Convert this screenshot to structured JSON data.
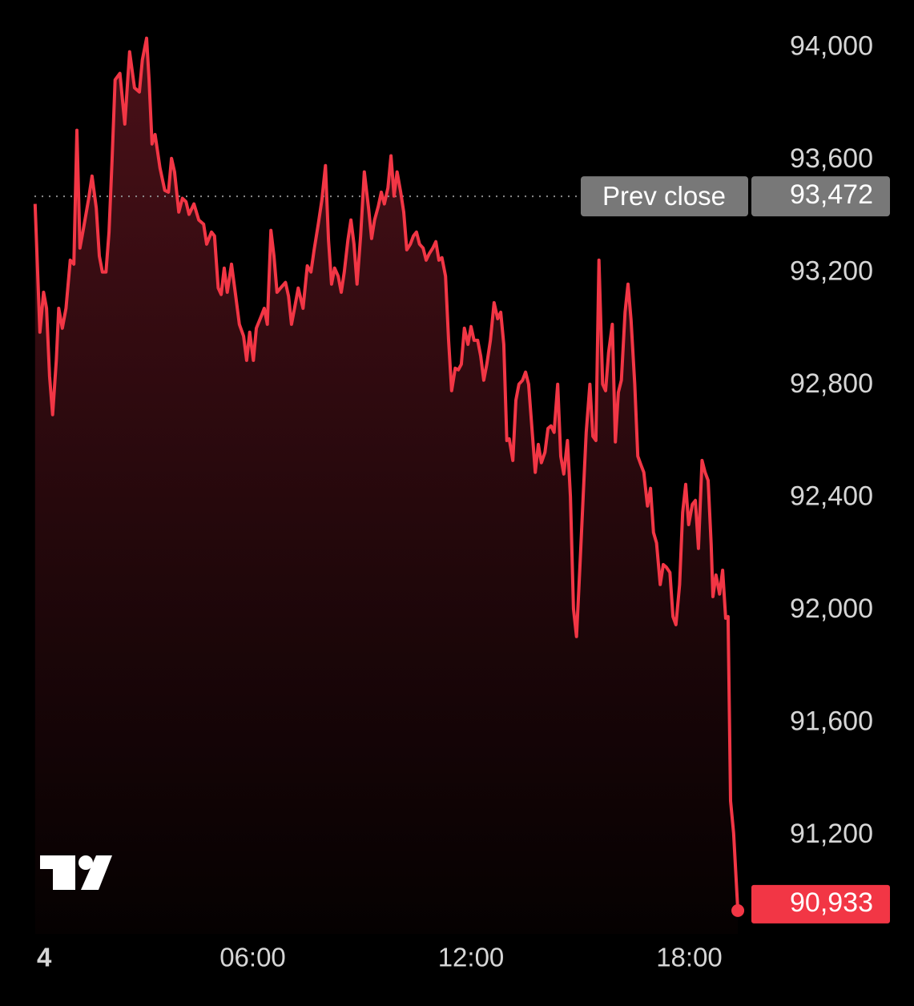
{
  "chart_data": {
    "type": "area",
    "color": "#f23645",
    "x": [
      1,
      9,
      15,
      20,
      25,
      30,
      36,
      40,
      46,
      52,
      59,
      65,
      70,
      75,
      81,
      89,
      95,
      102,
      107,
      112,
      118,
      123,
      128,
      133,
      141,
      149,
      157,
      165,
      173,
      178,
      185,
      189,
      194,
      199,
      207,
      215,
      221,
      226,
      231,
      238,
      244,
      250,
      255,
      263,
      271,
      279,
      284,
      292,
      297,
      303,
      308,
      313,
      318,
      325,
      332,
      338,
      345,
      350,
      355,
      361,
      366,
      374,
      379,
      384,
      390,
      395,
      400,
      406,
      414,
      419,
      424,
      429,
      435,
      443,
      450,
      456,
      461,
      468,
      474,
      480,
      485,
      490,
      495,
      501,
      506,
      511,
      517,
      522,
      527,
      532,
      538,
      544,
      551,
      556,
      561,
      567,
      572,
      577,
      583,
      588,
      593,
      598,
      604,
      609,
      614,
      620,
      625,
      630,
      635,
      641,
      646,
      651,
      657,
      662,
      667,
      672,
      678,
      683,
      688,
      694,
      699,
      704,
      709,
      715,
      720,
      725,
      731,
      736,
      741,
      746,
      752,
      758,
      764,
      769,
      774,
      779,
      783,
      789,
      794,
      799,
      805,
      810,
      815,
      820,
      826,
      831,
      836,
      842,
      847,
      852,
      857,
      863,
      868,
      873,
      879,
      884,
      889,
      894,
      900,
      905,
      910,
      916,
      921,
      926,
      931,
      937,
      942,
      947,
      953,
      958,
      963,
      968,
      974,
      979,
      984,
      990,
      995,
      1000,
      1005,
      1011,
      1016,
      1021,
      1026,
      1032,
      1037,
      1042,
      1048,
      1053,
      1058,
      1064,
      1069,
      1074,
      1079,
      1085,
      1090,
      1095,
      1101,
      1106,
      1111,
      1116,
      1119,
      1124,
      1130,
      1135,
      1140,
      1144,
      1148,
      1153,
      1160
    ],
    "values": [
      93445,
      92989,
      93131,
      93074,
      92832,
      92696,
      92889,
      93074,
      93003,
      93074,
      93245,
      93231,
      93707,
      93288,
      93359,
      93459,
      93544,
      93430,
      93260,
      93203,
      93203,
      93345,
      93601,
      93886,
      93909,
      93729,
      93986,
      93858,
      93843,
      93957,
      94034,
      93886,
      93658,
      93692,
      93573,
      93493,
      93487,
      93607,
      93559,
      93416,
      93465,
      93453,
      93408,
      93445,
      93388,
      93373,
      93302,
      93345,
      93331,
      93146,
      93123,
      93217,
      93131,
      93231,
      93117,
      93017,
      92975,
      92889,
      92989,
      92889,
      93003,
      93046,
      93074,
      93017,
      93351,
      93260,
      93131,
      93146,
      93166,
      93117,
      93017,
      93074,
      93146,
      93074,
      93225,
      93203,
      93279,
      93373,
      93459,
      93581,
      93316,
      93160,
      93217,
      93188,
      93131,
      93203,
      93316,
      93388,
      93302,
      93160,
      93331,
      93559,
      93430,
      93322,
      93388,
      93436,
      93487,
      93445,
      93502,
      93616,
      93473,
      93559,
      93487,
      93416,
      93282,
      93302,
      93331,
      93345,
      93302,
      93288,
      93245,
      93268,
      93288,
      93311,
      93245,
      93254,
      93188,
      92960,
      92781,
      92861,
      92855,
      92875,
      93003,
      92946,
      93009,
      92960,
      92960,
      92904,
      92818,
      92875,
      92960,
      93094,
      93037,
      93060,
      92946,
      92604,
      92610,
      92533,
      92747,
      92804,
      92818,
      92847,
      92804,
      92661,
      92491,
      92590,
      92525,
      92562,
      92647,
      92656,
      92633,
      92804,
      92548,
      92485,
      92604,
      92405,
      92006,
      91907,
      92177,
      92405,
      92633,
      92804,
      92619,
      92604,
      93245,
      92804,
      92781,
      92918,
      93017,
      92599,
      92775,
      92818,
      93060,
      93160,
      93032,
      92804,
      92548,
      92519,
      92491,
      92371,
      92434,
      92277,
      92240,
      92092,
      92163,
      92154,
      92135,
      91978,
      91949,
      92092,
      92348,
      92448,
      92305,
      92377,
      92391,
      92220,
      92533,
      92491,
      92462,
      92234,
      92049,
      92126,
      92058,
      92143,
      91972,
      91978,
      91323,
      91209,
      90933
    ],
    "xlim": [
      0,
      1180
    ],
    "xticks": [
      {
        "value": 0,
        "label": "4"
      },
      {
        "value": 360,
        "label": "06:00"
      },
      {
        "value": 720,
        "label": "12:00"
      },
      {
        "value": 1080,
        "label": "18:00"
      }
    ],
    "ylim": [
      90850,
      94150
    ],
    "yticks": [
      {
        "value": 94000,
        "label": "94,000"
      },
      {
        "value": 93600,
        "label": "93,600"
      },
      {
        "value": 93200,
        "label": "93,200"
      },
      {
        "value": 92800,
        "label": "92,800"
      },
      {
        "value": 92400,
        "label": "92,400"
      },
      {
        "value": 92000,
        "label": "92,000"
      },
      {
        "value": 91600,
        "label": "91,600"
      },
      {
        "value": 91200,
        "label": "91,200"
      }
    ],
    "prev_close": {
      "name": "Prev close",
      "value": 93472,
      "label": "93,472"
    },
    "last_price": {
      "value": 90933,
      "label": "90,933"
    }
  }
}
